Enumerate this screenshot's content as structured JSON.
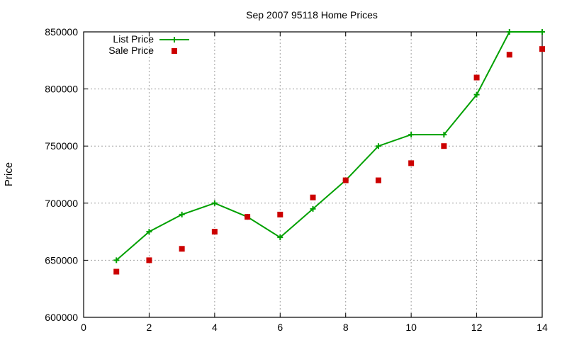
{
  "chart_data": {
    "type": "line",
    "title": "Sep 2007 95118 Home Prices",
    "xlabel": "",
    "ylabel": "Price",
    "xlim": [
      0,
      14
    ],
    "ylim": [
      600000,
      850000
    ],
    "x_ticks": [
      0,
      2,
      4,
      6,
      8,
      10,
      12,
      14
    ],
    "y_ticks": [
      600000,
      650000,
      700000,
      750000,
      800000,
      850000
    ],
    "grid": true,
    "legend_position": "top-left",
    "x": [
      1,
      2,
      3,
      4,
      5,
      6,
      7,
      8,
      9,
      10,
      11,
      12,
      13,
      14
    ],
    "series": [
      {
        "name": "List Price",
        "style": "linespoints",
        "color": "#00a000",
        "marker": "plus",
        "values": [
          650000,
          675000,
          690000,
          700000,
          688000,
          670000,
          695000,
          720000,
          750000,
          760000,
          760000,
          795000,
          850000,
          850000
        ]
      },
      {
        "name": "Sale Price",
        "style": "points",
        "color": "#cc0000",
        "marker": "square",
        "values": [
          640000,
          650000,
          660000,
          675000,
          688000,
          690000,
          705000,
          720000,
          720000,
          735000,
          750000,
          810000,
          830000,
          835000
        ]
      }
    ]
  }
}
